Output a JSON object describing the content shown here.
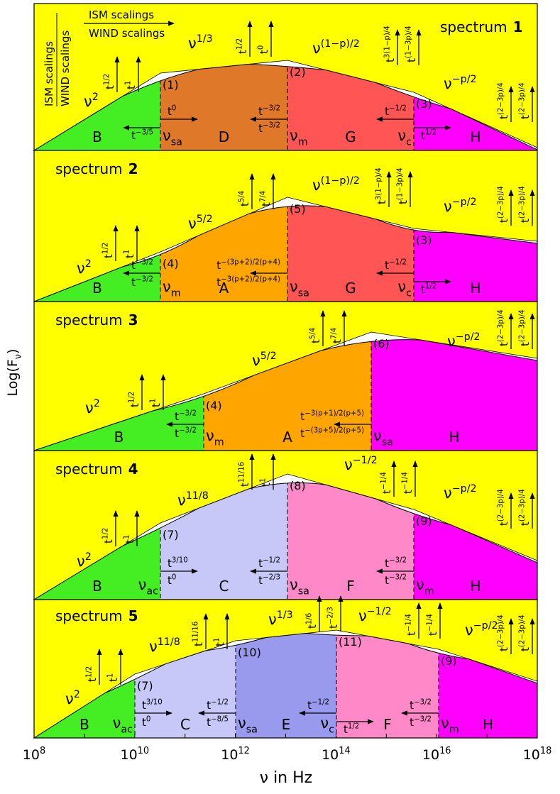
{
  "legend": {
    "horizontal": {
      "ism": "ISM scalings",
      "wind": "WIND scalings"
    },
    "vertical": {
      "ism": "ISM scalings",
      "wind": "WIND scalings"
    }
  },
  "y_axis": {
    "label": {
      "base": "Log(F",
      "sub": "ν",
      "rest": ")"
    }
  },
  "x_axis": {
    "label": "ν in Hz",
    "ticks": [
      {
        "base": "10",
        "sup": "8"
      },
      {
        "base": "10",
        "sup": "10"
      },
      {
        "base": "10",
        "sup": "12"
      },
      {
        "base": "10",
        "sup": "14"
      },
      {
        "base": "10",
        "sup": "16"
      },
      {
        "base": "10",
        "sup": "18"
      }
    ]
  },
  "panels": [
    {
      "label": "spectrum",
      "number": "1",
      "regions": [
        {
          "letter": "B",
          "color": "#44ee22"
        },
        {
          "letter": "D",
          "color": "#e0782a"
        },
        {
          "letter": "G",
          "color": "#ff5555"
        },
        {
          "letter": "H",
          "color": "#ff00ff"
        }
      ],
      "breaks": [
        {
          "id": "(1)",
          "nu": {
            "base": "ν",
            "sub": "sa"
          }
        },
        {
          "id": "(2)",
          "nu": {
            "base": "ν",
            "sub": "m"
          }
        },
        {
          "id": "(3)",
          "nu": {
            "base": "ν",
            "sub": "c"
          }
        }
      ],
      "slopes": [
        {
          "base": "ν",
          "sup": "2"
        },
        {
          "base": "ν",
          "sup": "1/3"
        },
        {
          "base": "ν",
          "sup": "(1−p)/2"
        },
        {
          "base": "ν",
          "sup": "−p/2"
        }
      ],
      "vertical_scalings": [
        {
          "ism": {
            "base": "t",
            "sup": "1/2"
          },
          "wind": {
            "base": "t",
            "sup": "1"
          }
        },
        {
          "ism": {
            "base": "t",
            "sup": "1/2"
          },
          "wind": {
            "base": "t",
            "sup": "0"
          }
        },
        {
          "ism": {
            "base": "t",
            "sup": "3(1−p)/4"
          },
          "wind": {
            "base": "t",
            "sup": "(1−3p)/4"
          }
        },
        {
          "ism": {
            "base": "t",
            "sup": "(2−3p)/4"
          },
          "wind": {
            "base": "t",
            "sup": "(2−3p)/4"
          }
        }
      ],
      "horizontal_scalings": [
        {
          "ism": {
            "base": "t",
            "sup": "0"
          },
          "wind": {
            "base": "t",
            "sup": "−3/5"
          }
        },
        {
          "ism": {
            "base": "t",
            "sup": "−3/2"
          },
          "wind": {
            "base": "t",
            "sup": "−3/2"
          }
        },
        {
          "ism": {
            "base": "t",
            "sup": "−1/2"
          },
          "wind": {
            "base": "t",
            "sup": "1/2"
          }
        }
      ]
    },
    {
      "label": "spectrum",
      "number": "2",
      "regions": [
        {
          "letter": "B",
          "color": "#44ee22"
        },
        {
          "letter": "A",
          "color": "#ffa500"
        },
        {
          "letter": "G",
          "color": "#ff5555"
        },
        {
          "letter": "H",
          "color": "#ff00ff"
        }
      ],
      "breaks": [
        {
          "id": "(4)",
          "nu": {
            "base": "ν",
            "sub": "m"
          }
        },
        {
          "id": "(5)",
          "nu": {
            "base": "ν",
            "sub": "sa"
          }
        },
        {
          "id": "(3)",
          "nu": {
            "base": "ν",
            "sub": "c"
          }
        }
      ],
      "slopes": [
        {
          "base": "ν",
          "sup": "2"
        },
        {
          "base": "ν",
          "sup": "5/2"
        },
        {
          "base": "ν",
          "sup": "(1−p)/2"
        },
        {
          "base": "ν",
          "sup": "−p/2"
        }
      ],
      "vertical_scalings": [
        {
          "ism": {
            "base": "t",
            "sup": "1/2"
          },
          "wind": {
            "base": "t",
            "sup": "1"
          }
        },
        {
          "ism": {
            "base": "t",
            "sup": "5/4"
          },
          "wind": {
            "base": "t",
            "sup": "7/4"
          }
        },
        {
          "ism": {
            "base": "t",
            "sup": "3(1−p)/4"
          },
          "wind": {
            "base": "t",
            "sup": "(1−3p)/4"
          }
        },
        {
          "ism": {
            "base": "t",
            "sup": "(2−3p)/4"
          },
          "wind": {
            "base": "t",
            "sup": "(2−3p)/4"
          }
        }
      ],
      "horizontal_scalings": [
        {
          "ism": {
            "base": "t",
            "sup": "−3/2"
          },
          "wind": {
            "base": "t",
            "sup": "−3/2"
          }
        },
        {
          "ism": {
            "base": "t",
            "sup": "−(3p+2)/2(p+4)"
          },
          "wind": {
            "base": "t",
            "sup": "−3(p+2)/2(p+4)"
          }
        },
        {
          "ism": {
            "base": "t",
            "sup": "−1/2"
          },
          "wind": {
            "base": "t",
            "sup": "1/2"
          }
        }
      ]
    },
    {
      "label": "spectrum",
      "number": "3",
      "regions": [
        {
          "letter": "B",
          "color": "#44ee22"
        },
        {
          "letter": "A",
          "color": "#ffa500"
        },
        {
          "letter": "H",
          "color": "#ff00ff"
        }
      ],
      "breaks": [
        {
          "id": "(4)",
          "nu": {
            "base": "ν",
            "sub": "m"
          }
        },
        {
          "id": "(6)",
          "nu": {
            "base": "ν",
            "sub": "sa"
          }
        }
      ],
      "slopes": [
        {
          "base": "ν",
          "sup": "2"
        },
        {
          "base": "ν",
          "sup": "5/2"
        },
        {
          "base": "ν",
          "sup": "−p/2"
        }
      ],
      "vertical_scalings": [
        {
          "ism": {
            "base": "t",
            "sup": "1/2"
          },
          "wind": {
            "base": "t",
            "sup": "1"
          }
        },
        {
          "ism": {
            "base": "t",
            "sup": "5/4"
          },
          "wind": {
            "base": "t",
            "sup": "7/4"
          }
        },
        {
          "ism": {
            "base": "t",
            "sup": "(2−3p)/4"
          },
          "wind": {
            "base": "t",
            "sup": "(2−3p)/4"
          }
        }
      ],
      "horizontal_scalings": [
        {
          "ism": {
            "base": "t",
            "sup": "−3/2"
          },
          "wind": {
            "base": "t",
            "sup": "−3/2"
          }
        },
        {
          "ism": {
            "base": "t",
            "sup": "−3(p+1)/2(p+5)"
          },
          "wind": {
            "base": "t",
            "sup": "−(3p+5)/2(p+5)"
          }
        }
      ]
    },
    {
      "label": "spectrum",
      "number": "4",
      "regions": [
        {
          "letter": "B",
          "color": "#44ee22"
        },
        {
          "letter": "C",
          "color": "#c8c8f8"
        },
        {
          "letter": "F",
          "color": "#ff88c8"
        },
        {
          "letter": "H",
          "color": "#ff00ff"
        }
      ],
      "breaks": [
        {
          "id": "(7)",
          "nu": {
            "base": "ν",
            "sub": "ac"
          }
        },
        {
          "id": "(8)",
          "nu": {
            "base": "ν",
            "sub": "sa"
          }
        },
        {
          "id": "(9)",
          "nu": {
            "base": "ν",
            "sub": "m"
          }
        }
      ],
      "slopes": [
        {
          "base": "ν",
          "sup": "2"
        },
        {
          "base": "ν",
          "sup": "11/8"
        },
        {
          "base": "ν",
          "sup": "−1/2"
        },
        {
          "base": "ν",
          "sup": "−p/2"
        }
      ],
      "vertical_scalings": [
        {
          "ism": {
            "base": "t",
            "sup": "1/2"
          },
          "wind": {
            "base": "t",
            "sup": "1"
          }
        },
        {
          "ism": {
            "base": "t",
            "sup": "11/16"
          },
          "wind": {
            "base": "t",
            "sup": "1"
          }
        },
        {
          "ism": {
            "base": "t",
            "sup": "−1/4"
          },
          "wind": {
            "base": "t",
            "sup": "−1/4"
          }
        },
        {
          "ism": {
            "base": "t",
            "sup": "(2−3p)/4"
          },
          "wind": {
            "base": "t",
            "sup": "(2−3p)/4"
          }
        }
      ],
      "horizontal_scalings": [
        {
          "ism": {
            "base": "t",
            "sup": "3/10"
          },
          "wind": {
            "base": "t",
            "sup": "0"
          }
        },
        {
          "ism": {
            "base": "t",
            "sup": "−1/2"
          },
          "wind": {
            "base": "t",
            "sup": "−2/3"
          }
        },
        {
          "ism": {
            "base": "t",
            "sup": "−3/2"
          },
          "wind": {
            "base": "t",
            "sup": "−3/2"
          }
        }
      ]
    },
    {
      "label": "spectrum",
      "number": "5",
      "regions": [
        {
          "letter": "B",
          "color": "#44ee22"
        },
        {
          "letter": "C",
          "color": "#c8c8f8"
        },
        {
          "letter": "E",
          "color": "#9999ee"
        },
        {
          "letter": "F",
          "color": "#ff88c8"
        },
        {
          "letter": "H",
          "color": "#ff00ff"
        }
      ],
      "breaks": [
        {
          "id": "(7)",
          "nu": {
            "base": "ν",
            "sub": "ac"
          }
        },
        {
          "id": "(10)",
          "nu": {
            "base": "ν",
            "sub": "sa"
          }
        },
        {
          "id": "(11)",
          "nu": {
            "base": "ν",
            "sub": "c"
          }
        },
        {
          "id": "(9)",
          "nu": {
            "base": "ν",
            "sub": "m"
          }
        }
      ],
      "slopes": [
        {
          "base": "ν",
          "sup": "2"
        },
        {
          "base": "ν",
          "sup": "11/8"
        },
        {
          "base": "ν",
          "sup": "1/3"
        },
        {
          "base": "ν",
          "sup": "−1/2"
        },
        {
          "base": "ν",
          "sup": "−p/2"
        }
      ],
      "vertical_scalings": [
        {
          "ism": {
            "base": "t",
            "sup": "1/2"
          },
          "wind": {
            "base": "t",
            "sup": "1"
          }
        },
        {
          "ism": {
            "base": "t",
            "sup": "11/16"
          },
          "wind": {
            "base": "t",
            "sup": "1"
          }
        },
        {
          "ism": {
            "base": "t",
            "sup": "1/6"
          },
          "wind": {
            "base": "t",
            "sup": "−2/3"
          }
        },
        {
          "ism": {
            "base": "t",
            "sup": "−1/4"
          },
          "wind": {
            "base": "t",
            "sup": "−1/4"
          }
        },
        {
          "ism": {
            "base": "t",
            "sup": "(2−3p)/4"
          },
          "wind": {
            "base": "t",
            "sup": "(2−3p)/4"
          }
        }
      ],
      "horizontal_scalings": [
        {
          "ism": {
            "base": "t",
            "sup": "3/10"
          },
          "wind": {
            "base": "t",
            "sup": "0"
          }
        },
        {
          "ism": {
            "base": "t",
            "sup": "−1/2"
          },
          "wind": {
            "base": "t",
            "sup": "−8/5"
          }
        },
        {
          "ism": {
            "base": "t",
            "sup": "−1/2"
          },
          "wind": {
            "base": "t",
            "sup": "1/2"
          }
        },
        {
          "ism": {
            "base": "t",
            "sup": "−3/2"
          },
          "wind": {
            "base": "t",
            "sup": "−3/2"
          }
        }
      ]
    }
  ]
}
